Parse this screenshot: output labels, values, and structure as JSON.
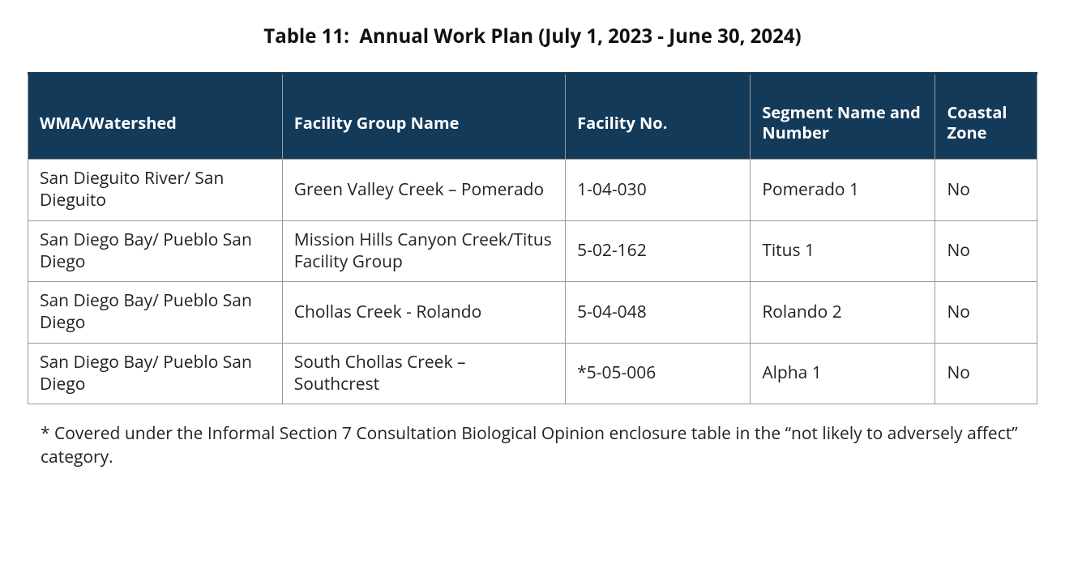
{
  "title": "Table 11:  Annual Work Plan (July 1, 2023 - June 30, 2024)",
  "table": {
    "header_bg": "#143a5a",
    "header_fg": "#ffffff",
    "border_color": "#9a9a9a",
    "col_widths_pct": [
      22,
      24.5,
      16,
      16,
      8.8
    ],
    "columns": [
      "WMA/Watershed",
      "Facility Group Name",
      "Facility No.",
      "Segment Name and Number",
      "Coastal Zone"
    ],
    "rows": [
      {
        "wma": "San Dieguito River/ San Dieguito",
        "group": "Green Valley Creek – Pomerado",
        "facility_no": "1-04-030",
        "segment": "Pomerado 1",
        "coastal": "No"
      },
      {
        "wma": "San Diego Bay/ Pueblo San Diego",
        "group": "Mission Hills Canyon Creek/Titus Facility Group",
        "facility_no": "5-02-162",
        "segment": "Titus 1",
        "coastal": "No"
      },
      {
        "wma": "San Diego Bay/ Pueblo San Diego",
        "group": "Chollas Creek - Rolando",
        "facility_no": "5-04-048",
        "segment": "Rolando 2",
        "coastal": "No"
      },
      {
        "wma": "San Diego Bay/ Pueblo San Diego",
        "group": "South Chollas Creek – Southcrest",
        "facility_no": "*5-05-006",
        "segment": "Alpha 1",
        "coastal": "No"
      }
    ]
  },
  "footnote": "* Covered under the Informal Section 7 Consultation Biological Opinion enclosure table in the “not likely to adversely affect” category."
}
